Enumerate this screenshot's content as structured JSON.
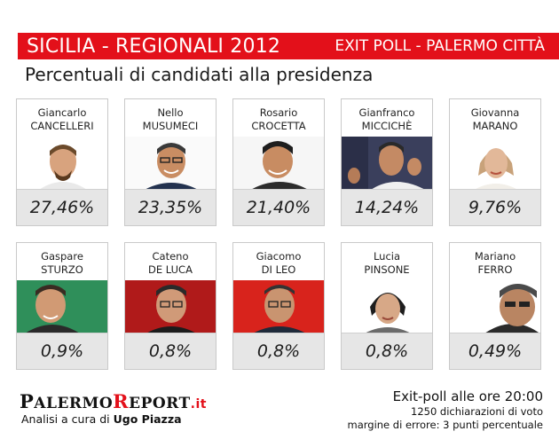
{
  "header": {
    "title": "SICILIA - REGIONALI 2012",
    "right": "EXIT POLL - PALERMO CITTÀ"
  },
  "subtitle": "Percentuali di candidati alla presidenza",
  "candidates": [
    {
      "first": "Giancarlo",
      "last": "CANCELLERI",
      "percent": "27,46%"
    },
    {
      "first": "Nello",
      "last": "MUSUMECI",
      "percent": "23,35%"
    },
    {
      "first": "Rosario",
      "last": "CROCETTA",
      "percent": "21,40%"
    },
    {
      "first": "Gianfranco",
      "last": "MICCICHÈ",
      "percent": "14,24%"
    },
    {
      "first": "Giovanna",
      "last": "MARANO",
      "percent": "9,76%"
    },
    {
      "first": "Gaspare",
      "last": "STURZO",
      "percent": "0,9%"
    },
    {
      "first": "Cateno",
      "last": "DE LUCA",
      "percent": "0,8%"
    },
    {
      "first": "Giacomo",
      "last": "DI LEO",
      "percent": "0,8%"
    },
    {
      "first": "Lucia",
      "last": "PINSONE",
      "percent": "0,8%"
    },
    {
      "first": "Mariano",
      "last": "FERRO",
      "percent": "0,49%"
    }
  ],
  "footer": {
    "logo_p": "P",
    "logo_alermo": "ALERMO",
    "logo_r": "R",
    "logo_eport": "EPORT",
    "logo_it": ".it",
    "analysis_prefix": "Analisi a cura di",
    "analysis_author": "Ugo Piazza",
    "time": "Exit-poll alle ore 20:00",
    "declarations": "1250 dichiarazioni di voto",
    "margin": "margine di errore: 3 punti percentuale"
  },
  "colors": {
    "banner": "#e3101a",
    "percent_bg": "#e6e6e6"
  }
}
